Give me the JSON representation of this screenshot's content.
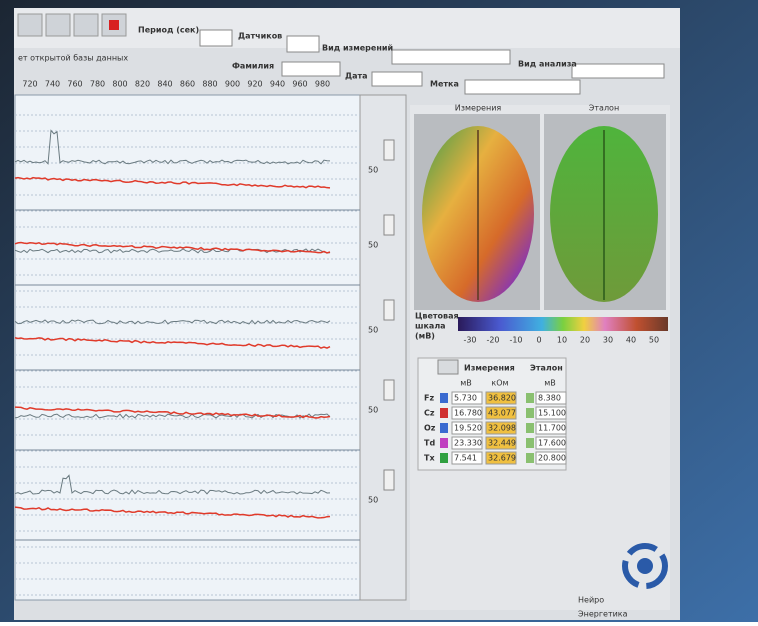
{
  "toolbar": {
    "period_label": "Период (сек)",
    "sensors_label": "Датчиков",
    "measure_type_label": "Вид измерений",
    "analysis_type_label": "Вид анализа",
    "status": "ет открытой базы данных",
    "surname_label": "Фамилия",
    "date_label": "Дата",
    "mark_label": "Метка"
  },
  "chart": {
    "x_ticks": [
      720,
      740,
      760,
      780,
      800,
      820,
      840,
      860,
      880,
      900,
      920,
      940,
      960,
      980
    ],
    "channel_scale": [
      "50",
      "50",
      "50",
      "50",
      "50"
    ]
  },
  "brain_panel": {
    "measured_title": "Измерения",
    "reference_title": "Эталон"
  },
  "color_scale": {
    "label_lines": [
      "Цветовая",
      "шкала",
      "(мВ)"
    ],
    "ticks": [
      -30,
      -20,
      -10,
      0,
      10,
      20,
      30,
      40,
      50
    ]
  },
  "table": {
    "measured_title": "Измерения",
    "reference_title": "Эталон",
    "units": [
      "мВ",
      "кОм",
      "мВ"
    ],
    "rows": [
      [
        "Fz",
        "5.730",
        "36.820",
        "8.380"
      ],
      [
        "Cz",
        "16.780",
        "43.077",
        "15.100"
      ],
      [
        "Oz",
        "19.520",
        "32.098",
        "11.700"
      ],
      [
        "Td",
        "23.330",
        "32.449",
        "17.600"
      ],
      [
        "Tx",
        "7.541",
        "32.679",
        "20.800"
      ]
    ]
  },
  "logo": {
    "line1": "Нейро",
    "line2": "Энергетика"
  }
}
